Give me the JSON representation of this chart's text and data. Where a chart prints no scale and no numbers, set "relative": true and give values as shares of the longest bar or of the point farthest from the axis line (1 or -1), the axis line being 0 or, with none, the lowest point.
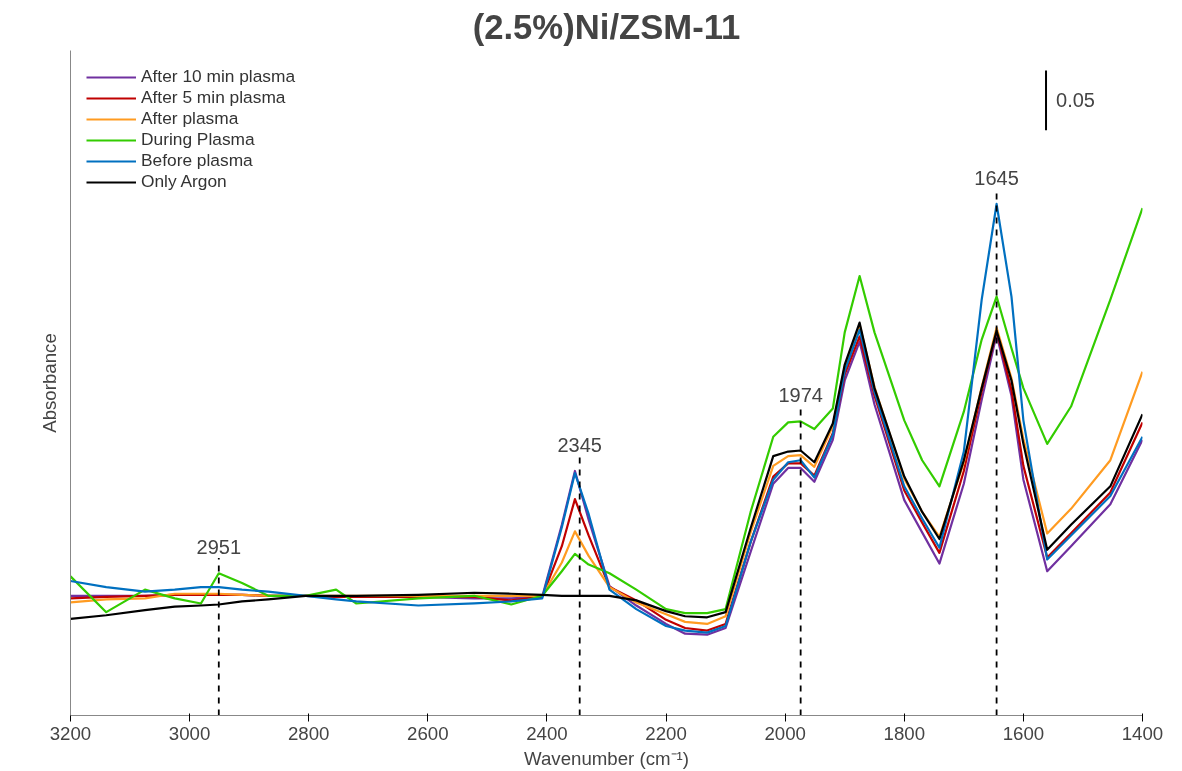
{
  "chart_data": {
    "type": "line",
    "title": "(2.5%)Ni/ZSM-11",
    "xlabel": "Wavenumber (cm⁻¹)",
    "ylabel": "Absorbance",
    "relative": true,
    "x": [
      3200,
      3140,
      3075,
      3025,
      2981,
      2951,
      2912,
      2868,
      2805,
      2754,
      2720,
      2616,
      2522,
      2460,
      2408,
      2375,
      2353,
      2330,
      2295,
      2250,
      2200,
      2168,
      2131,
      2100,
      2058,
      2020,
      1995,
      1974,
      1951,
      1920,
      1900,
      1875,
      1850,
      1800,
      1770,
      1741,
      1700,
      1670,
      1645,
      1620,
      1600,
      1560,
      1520,
      1454,
      1400
    ],
    "xlim": [
      3200,
      1400
    ],
    "xticks": [
      3200,
      3000,
      2800,
      2600,
      2400,
      2200,
      2000,
      1800,
      1600,
      1400
    ],
    "series": [
      {
        "name": "After 10 min plasma",
        "color": "#7030a0",
        "values": [
          0.234,
          0.234,
          0.234,
          0.236,
          0.236,
          0.236,
          0.236,
          0.234,
          0.234,
          0.232,
          0.232,
          0.232,
          0.229,
          0.229,
          0.232,
          0.373,
          0.478,
          0.383,
          0.253,
          0.215,
          0.179,
          0.16,
          0.158,
          0.171,
          0.32,
          0.453,
          0.484,
          0.484,
          0.457,
          0.539,
          0.655,
          0.731,
          0.608,
          0.421,
          0.358,
          0.297,
          0.453,
          0.617,
          0.745,
          0.625,
          0.461,
          0.282,
          0.331,
          0.413,
          0.539
        ]
      },
      {
        "name": "After 5 min plasma",
        "color": "#c00000",
        "values": [
          0.229,
          0.232,
          0.234,
          0.236,
          0.236,
          0.236,
          0.236,
          0.234,
          0.234,
          0.232,
          0.232,
          0.232,
          0.232,
          0.225,
          0.232,
          0.331,
          0.423,
          0.352,
          0.251,
          0.225,
          0.187,
          0.171,
          0.166,
          0.179,
          0.339,
          0.467,
          0.493,
          0.493,
          0.469,
          0.552,
          0.667,
          0.741,
          0.625,
          0.44,
          0.377,
          0.318,
          0.478,
          0.634,
          0.752,
          0.636,
          0.488,
          0.309,
          0.356,
          0.436,
          0.573
        ]
      },
      {
        "name": "After plasma",
        "color": "#ff9b21",
        "values": [
          0.221,
          0.227,
          0.229,
          0.238,
          0.238,
          0.238,
          0.236,
          0.234,
          0.234,
          0.234,
          0.234,
          0.234,
          0.234,
          0.234,
          0.234,
          0.299,
          0.36,
          0.312,
          0.251,
          0.221,
          0.198,
          0.183,
          0.179,
          0.194,
          0.358,
          0.488,
          0.507,
          0.509,
          0.486,
          0.566,
          0.682,
          0.764,
          0.642,
          0.463,
          0.398,
          0.349,
          0.495,
          0.642,
          0.758,
          0.659,
          0.541,
          0.356,
          0.404,
          0.499,
          0.672
        ]
      },
      {
        "name": "During Plasma",
        "color": "#33cc00",
        "values": [
          0.272,
          0.202,
          0.246,
          0.229,
          0.219,
          0.278,
          0.259,
          0.234,
          0.234,
          0.246,
          0.219,
          0.229,
          0.234,
          0.217,
          0.234,
          0.282,
          0.316,
          0.295,
          0.278,
          0.246,
          0.208,
          0.2,
          0.2,
          0.208,
          0.398,
          0.545,
          0.573,
          0.575,
          0.56,
          0.6,
          0.749,
          0.859,
          0.749,
          0.577,
          0.499,
          0.448,
          0.594,
          0.735,
          0.819,
          0.718,
          0.64,
          0.531,
          0.604,
          0.813,
          0.992
        ]
      },
      {
        "name": "Before plasma",
        "color": "#0070c0",
        "values": [
          0.263,
          0.251,
          0.242,
          0.246,
          0.251,
          0.251,
          0.246,
          0.242,
          0.234,
          0.227,
          0.223,
          0.215,
          0.219,
          0.223,
          0.229,
          0.368,
          0.474,
          0.394,
          0.246,
          0.208,
          0.175,
          0.166,
          0.162,
          0.175,
          0.339,
          0.461,
          0.495,
          0.499,
          0.465,
          0.549,
          0.674,
          0.754,
          0.632,
          0.448,
          0.385,
          0.328,
          0.516,
          0.813,
          1.0,
          0.819,
          0.577,
          0.305,
          0.352,
          0.429,
          0.545
        ]
      },
      {
        "name": "Only Argon",
        "color": "#000000",
        "values": [
          0.189,
          0.196,
          0.206,
          0.213,
          0.215,
          0.217,
          0.223,
          0.227,
          0.234,
          0.234,
          0.234,
          0.236,
          0.24,
          0.238,
          0.236,
          0.234,
          0.234,
          0.234,
          0.234,
          0.225,
          0.204,
          0.194,
          0.192,
          0.202,
          0.366,
          0.507,
          0.516,
          0.518,
          0.495,
          0.571,
          0.686,
          0.768,
          0.64,
          0.467,
          0.398,
          0.345,
          0.499,
          0.64,
          0.752,
          0.655,
          0.531,
          0.324,
          0.373,
          0.448,
          0.589
        ]
      }
    ],
    "ref_lines": [
      {
        "axis": "x",
        "value": 2951,
        "label": "2951",
        "color": "#000000",
        "line_style": "dashed"
      },
      {
        "axis": "x",
        "value": 2345,
        "label": "2345",
        "color": "#000000",
        "line_style": "dashed"
      },
      {
        "axis": "x",
        "value": 1974,
        "label": "1974",
        "color": "#000000",
        "line_style": "dashed"
      },
      {
        "axis": "x",
        "value": 1645,
        "label": "1645",
        "color": "#000000",
        "line_style": "dashed"
      }
    ],
    "annotations": [
      "0.05"
    ],
    "legend": "top left",
    "grid": false,
    "marker": "none",
    "line_style": "solid"
  }
}
